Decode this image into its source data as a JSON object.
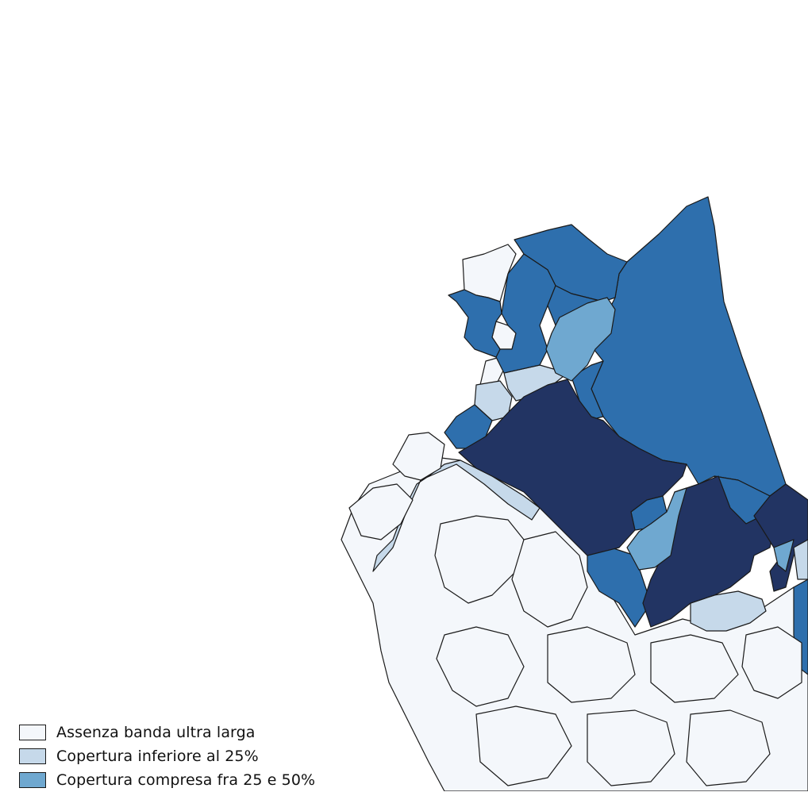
{
  "colors": {
    "none": "#f4f7fb",
    "low": "#c6d9ea",
    "mid": "#6fa8d0",
    "high": "#2e6fad",
    "full": "#223463"
  },
  "legend": {
    "items": [
      {
        "label": "Assenza banda ultra larga",
        "color": "#f4f7fb"
      },
      {
        "label": "Copertura inferiore al 25%",
        "color": "#c6d9ea"
      },
      {
        "label": "Copertura compresa fra 25 e 50%",
        "color": "#6fa8d0"
      }
    ]
  }
}
